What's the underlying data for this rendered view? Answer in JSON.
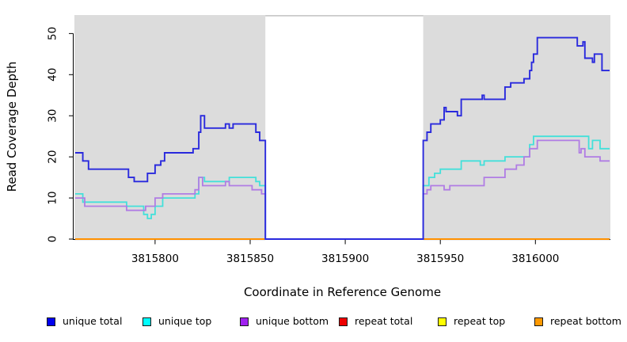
{
  "chart_data": {
    "type": "line",
    "step": true,
    "title": "",
    "xlabel": "Coordinate in Reference Genome",
    "ylabel": "Read Coverage Depth",
    "xlim": [
      3815758,
      3816039
    ],
    "ylim": [
      0,
      54.5
    ],
    "x_ticks": [
      3815800,
      3815850,
      3815900,
      3815950,
      3816000
    ],
    "y_ticks": [
      0,
      10,
      20,
      30,
      40,
      50
    ],
    "grid": false,
    "plot_background": "#dcdcdc",
    "gap_region": {
      "start": 3815858,
      "end": 3815941,
      "fill": "#ffffff",
      "border": "#b3b3b3"
    },
    "axis_color": "#000000",
    "legend_position": "bottom",
    "legend": [
      {
        "label": "unique total",
        "fill": "#0000ee",
        "border": "#1a1a1a"
      },
      {
        "label": "unique top",
        "fill": "#00ffff",
        "border": "#1a1a1a"
      },
      {
        "label": "unique bottom",
        "fill": "#a020f0",
        "border": "#1a1a1a"
      },
      {
        "label": "repeat total",
        "fill": "#ee0000",
        "border": "#1a1a1a"
      },
      {
        "label": "repeat top",
        "fill": "#ffff00",
        "border": "#1a1a1a"
      },
      {
        "label": "repeat bottom",
        "fill": "#ff9900",
        "border": "#1a1a1a"
      }
    ],
    "series": [
      {
        "name": "repeat total",
        "color": "#e00000",
        "width": 2,
        "segments": [
          [
            [
              3815758,
              0
            ],
            [
              3815858,
              0
            ]
          ],
          [
            [
              3815941,
              0
            ],
            [
              3816039,
              0
            ]
          ]
        ]
      },
      {
        "name": "repeat top",
        "color": "#ffee00",
        "width": 2,
        "segments": [
          [
            [
              3815758,
              0
            ],
            [
              3815858,
              0
            ]
          ],
          [
            [
              3815941,
              0
            ],
            [
              3816039,
              0
            ]
          ]
        ]
      },
      {
        "name": "repeat bottom",
        "color": "#ff9100",
        "width": 2,
        "segments": [
          [
            [
              3815758,
              0
            ],
            [
              3815858,
              0
            ]
          ],
          [
            [
              3815941,
              0
            ],
            [
              3816039,
              0
            ]
          ]
        ]
      },
      {
        "name": "unique top",
        "color": "#43e0da",
        "width": 1.8,
        "segments": [
          [
            [
              3815758,
              11
            ],
            [
              3815762,
              9
            ],
            [
              3815785,
              8
            ],
            [
              3815794,
              6
            ],
            [
              3815796,
              5
            ],
            [
              3815798,
              6
            ],
            [
              3815800,
              8
            ],
            [
              3815804,
              10
            ],
            [
              3815821,
              11
            ],
            [
              3815823,
              15
            ],
            [
              3815826,
              14
            ],
            [
              3815839,
              15
            ],
            [
              3815853,
              14
            ],
            [
              3815855,
              13
            ],
            [
              3815858,
              0
            ],
            [
              3815941,
              13
            ],
            [
              3815944,
              15
            ],
            [
              3815947,
              16
            ],
            [
              3815950,
              17
            ],
            [
              3815961,
              19
            ],
            [
              3815971,
              18
            ],
            [
              3815973,
              19
            ],
            [
              3815984,
              20
            ],
            [
              3815997,
              23
            ],
            [
              3815999,
              25
            ],
            [
              3816028,
              22
            ],
            [
              3816030,
              24
            ],
            [
              3816034,
              22
            ],
            [
              3816039,
              22
            ]
          ]
        ]
      },
      {
        "name": "unique bottom",
        "color": "#b07ce4",
        "width": 1.8,
        "segments": [
          [
            [
              3815758,
              10
            ],
            [
              3815763,
              8
            ],
            [
              3815785,
              7
            ],
            [
              3815795,
              8
            ],
            [
              3815800,
              10
            ],
            [
              3815804,
              11
            ],
            [
              3815821,
              12
            ],
            [
              3815823,
              15
            ],
            [
              3815825,
              13
            ],
            [
              3815837,
              14
            ],
            [
              3815839,
              13
            ],
            [
              3815851,
              12
            ],
            [
              3815856,
              11
            ],
            [
              3815858,
              0
            ],
            [
              3815941,
              11
            ],
            [
              3815943,
              12
            ],
            [
              3815945,
              13
            ],
            [
              3815952,
              12
            ],
            [
              3815955,
              13
            ],
            [
              3815973,
              15
            ],
            [
              3815984,
              17
            ],
            [
              3815990,
              18
            ],
            [
              3815994,
              20
            ],
            [
              3815997,
              22
            ],
            [
              3816001,
              24
            ],
            [
              3816023,
              21
            ],
            [
              3816024,
              22
            ],
            [
              3816026,
              20
            ],
            [
              3816034,
              19
            ],
            [
              3816039,
              19
            ]
          ]
        ]
      },
      {
        "name": "unique total",
        "color": "#2929dd",
        "width": 1.9,
        "segments": [
          [
            [
              3815758,
              21
            ],
            [
              3815762,
              19
            ],
            [
              3815765,
              17
            ],
            [
              3815786,
              15
            ],
            [
              3815789,
              14
            ],
            [
              3815796,
              16
            ],
            [
              3815800,
              18
            ],
            [
              3815803,
              19
            ],
            [
              3815805,
              21
            ],
            [
              3815820,
              22
            ],
            [
              3815823,
              26
            ],
            [
              3815824,
              30
            ],
            [
              3815826,
              27
            ],
            [
              3815837,
              28
            ],
            [
              3815839,
              27
            ],
            [
              3815841,
              28
            ],
            [
              3815853,
              26
            ],
            [
              3815855,
              24
            ],
            [
              3815858,
              0
            ],
            [
              3815941,
              24
            ],
            [
              3815943,
              26
            ],
            [
              3815945,
              28
            ],
            [
              3815950,
              29
            ],
            [
              3815952,
              32
            ],
            [
              3815953,
              31
            ],
            [
              3815959,
              30
            ],
            [
              3815961,
              34
            ],
            [
              3815972,
              35
            ],
            [
              3815973,
              34
            ],
            [
              3815984,
              37
            ],
            [
              3815987,
              38
            ],
            [
              3815994,
              39
            ],
            [
              3815997,
              41
            ],
            [
              3815998,
              43
            ],
            [
              3815999,
              45
            ],
            [
              3816001,
              49
            ],
            [
              3816022,
              47
            ],
            [
              3816025,
              48
            ],
            [
              3816026,
              44
            ],
            [
              3816030,
              43
            ],
            [
              3816031,
              45
            ],
            [
              3816035,
              41
            ],
            [
              3816039,
              41
            ]
          ]
        ]
      }
    ]
  }
}
